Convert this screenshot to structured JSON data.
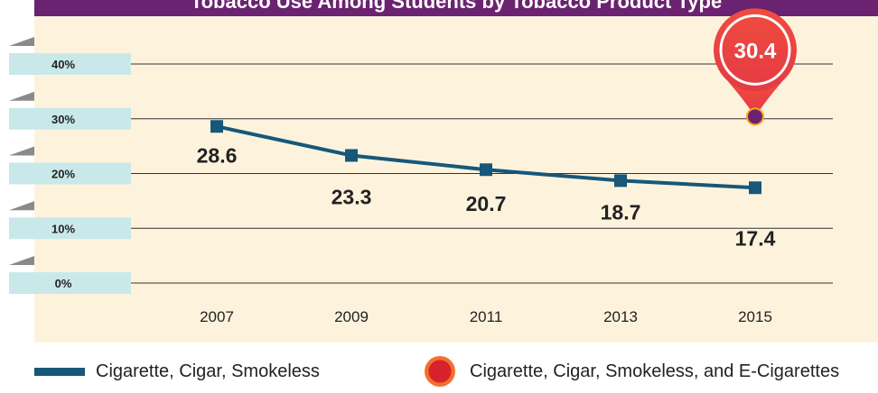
{
  "title": "Tobacco Use Among Students by Tobacco Product Type",
  "chart_data": {
    "type": "line",
    "x": [
      "2007",
      "2009",
      "2011",
      "2013",
      "2015"
    ],
    "yticks": [
      "40%",
      "30%",
      "20%",
      "10%",
      "0%"
    ],
    "ylim": [
      0,
      40
    ],
    "grid": true,
    "series": [
      {
        "name": "Cigarette, Cigar, Smokeless",
        "values": [
          28.6,
          23.3,
          20.7,
          18.7,
          17.4
        ],
        "labels": [
          "28.6",
          "23.3",
          "20.7",
          "18.7",
          "17.4"
        ],
        "color": "#175779"
      },
      {
        "name": "Cigarette, Cigar, Smokeless, and E-Cigarettes",
        "points": [
          {
            "x": "2015",
            "y": 30.4
          }
        ],
        "labels": [
          "30.4"
        ],
        "color": "#e5383b"
      }
    ],
    "legend": "bottom"
  },
  "colors": {
    "title_bg": "#6b2270",
    "panel_bg": "#fdf3dd",
    "tick_tab": "#c9e8ea",
    "line": "#175779",
    "pin": "#e5383b",
    "pin_dot": "#6b2270"
  }
}
